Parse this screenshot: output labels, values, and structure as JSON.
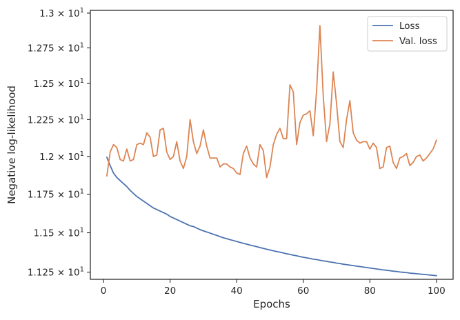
{
  "chart_data": {
    "type": "line",
    "xlabel": "Epochs",
    "ylabel": "Negative log-likelihood",
    "xlim": [
      -3.95,
      105
    ],
    "ylim": [
      11.205,
      13.02
    ],
    "yscale": "log",
    "grid": false,
    "legend_position": "top-right",
    "x_ticks": [
      0,
      20,
      40,
      60,
      80,
      100
    ],
    "x_tick_labels": [
      "0",
      "20",
      "40",
      "60",
      "80",
      "100"
    ],
    "y_ticks": [
      11.25,
      11.5,
      11.75,
      12.0,
      12.25,
      12.5,
      12.75,
      13.0
    ],
    "y_tick_labels": [
      {
        "mantissa": "1.125",
        "exponent": "1"
      },
      {
        "mantissa": "1.15",
        "exponent": "1"
      },
      {
        "mantissa": "1.175",
        "exponent": "1"
      },
      {
        "mantissa": "1.2",
        "exponent": "1"
      },
      {
        "mantissa": "1.225",
        "exponent": "1"
      },
      {
        "mantissa": "1.25",
        "exponent": "1"
      },
      {
        "mantissa": "1.275",
        "exponent": "1"
      },
      {
        "mantissa": "1.3",
        "exponent": "1"
      }
    ],
    "x": [
      1,
      2,
      3,
      4,
      5,
      6,
      7,
      8,
      9,
      10,
      11,
      12,
      13,
      14,
      15,
      16,
      17,
      18,
      19,
      20,
      21,
      22,
      23,
      24,
      25,
      26,
      27,
      28,
      29,
      30,
      31,
      32,
      33,
      34,
      35,
      36,
      37,
      38,
      39,
      40,
      41,
      42,
      43,
      44,
      45,
      46,
      47,
      48,
      49,
      50,
      51,
      52,
      53,
      54,
      55,
      56,
      57,
      58,
      59,
      60,
      61,
      62,
      63,
      64,
      65,
      66,
      67,
      68,
      69,
      70,
      71,
      72,
      73,
      74,
      75,
      76,
      77,
      78,
      79,
      80,
      81,
      82,
      83,
      84,
      85,
      86,
      87,
      88,
      89,
      90,
      91,
      92,
      93,
      94,
      95,
      96,
      97,
      98,
      99,
      100
    ],
    "series": [
      {
        "name": "Loss",
        "color": "#4c72b0",
        "values": [
          11.995,
          11.94,
          11.89,
          11.86,
          11.84,
          11.82,
          11.8,
          11.775,
          11.755,
          11.735,
          11.72,
          11.705,
          11.69,
          11.675,
          11.66,
          11.65,
          11.64,
          11.63,
          11.62,
          11.605,
          11.595,
          11.585,
          11.575,
          11.565,
          11.555,
          11.545,
          11.54,
          11.53,
          11.52,
          11.512,
          11.505,
          11.498,
          11.49,
          11.483,
          11.475,
          11.468,
          11.462,
          11.456,
          11.45,
          11.444,
          11.438,
          11.432,
          11.427,
          11.421,
          11.416,
          11.411,
          11.405,
          11.4,
          11.395,
          11.39,
          11.385,
          11.38,
          11.376,
          11.371,
          11.366,
          11.362,
          11.357,
          11.353,
          11.348,
          11.344,
          11.34,
          11.336,
          11.332,
          11.329,
          11.325,
          11.321,
          11.318,
          11.314,
          11.311,
          11.307,
          11.304,
          11.3,
          11.297,
          11.294,
          11.291,
          11.288,
          11.285,
          11.282,
          11.279,
          11.276,
          11.273,
          11.27,
          11.267,
          11.264,
          11.262,
          11.259,
          11.256,
          11.254,
          11.251,
          11.249,
          11.247,
          11.244,
          11.242,
          11.24,
          11.238,
          11.236,
          11.234,
          11.232,
          11.23,
          11.228
        ]
      },
      {
        "name": "Val. loss",
        "color": "#dd8452",
        "values": [
          11.87,
          12.03,
          12.08,
          12.06,
          11.98,
          11.97,
          12.05,
          11.97,
          11.98,
          12.08,
          12.09,
          12.08,
          12.16,
          12.13,
          12.0,
          12.01,
          12.18,
          12.19,
          12.03,
          11.98,
          12.0,
          12.1,
          11.97,
          11.92,
          12.0,
          12.25,
          12.1,
          12.02,
          12.07,
          12.18,
          12.07,
          11.99,
          11.99,
          11.99,
          11.93,
          11.95,
          11.95,
          11.93,
          11.92,
          11.89,
          11.88,
          12.02,
          12.07,
          11.99,
          11.95,
          11.93,
          12.08,
          12.04,
          11.86,
          11.93,
          12.08,
          12.15,
          12.19,
          12.12,
          12.12,
          12.49,
          12.44,
          12.08,
          12.23,
          12.28,
          12.29,
          12.31,
          12.14,
          12.45,
          12.91,
          12.41,
          12.1,
          12.22,
          12.58,
          12.36,
          12.1,
          12.06,
          12.25,
          12.38,
          12.16,
          12.11,
          12.09,
          12.1,
          12.1,
          12.05,
          12.09,
          12.06,
          11.92,
          11.93,
          12.06,
          12.07,
          11.96,
          11.92,
          11.99,
          12.0,
          12.02,
          11.94,
          11.96,
          12.0,
          12.01,
          11.97,
          11.99,
          12.02,
          12.05,
          12.11
        ]
      }
    ]
  }
}
